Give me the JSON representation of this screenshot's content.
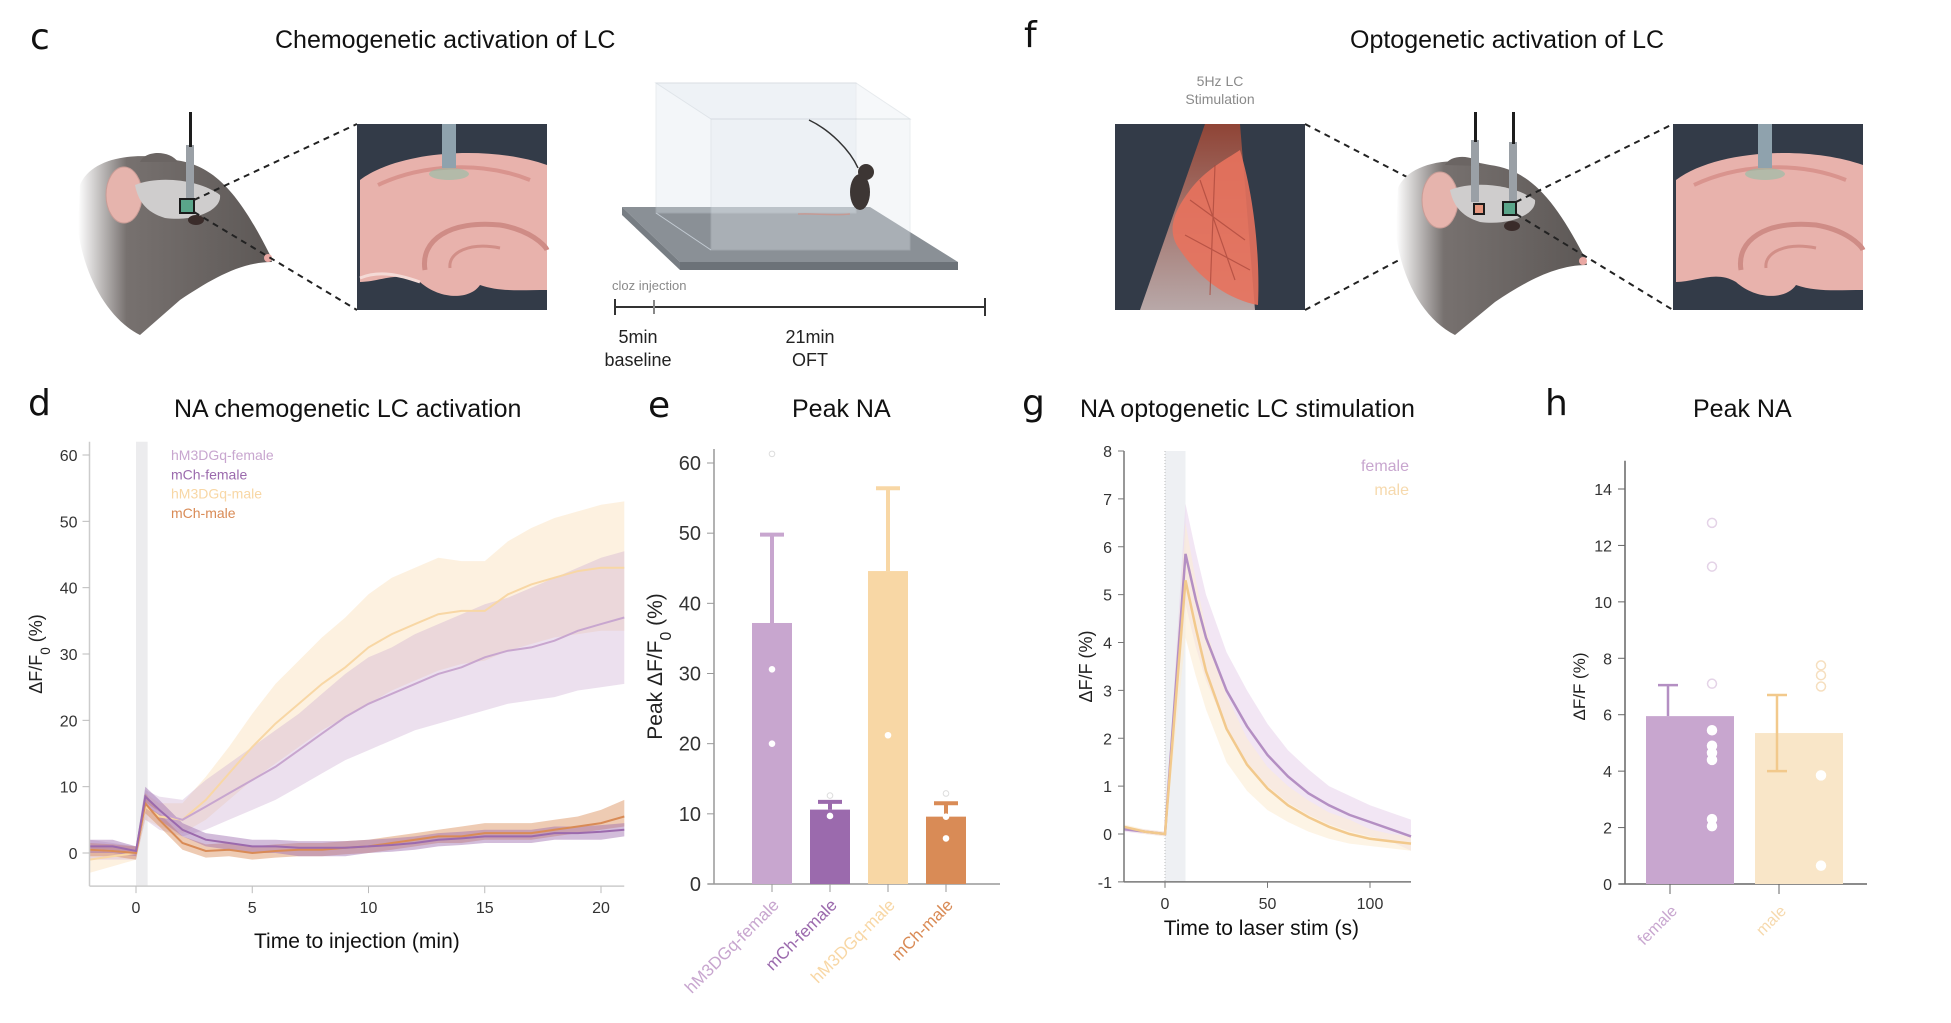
{
  "panels": {
    "c": {
      "letter": "c",
      "title": "Chemogenetic activation of LC",
      "timeline": {
        "event_label": "cloz injection",
        "seg1_line1": "5min",
        "seg1_line2": "baseline",
        "seg2_line1": "21min",
        "seg2_line2": "OFT"
      }
    },
    "f": {
      "letter": "f",
      "title": "Optogenetic activation of LC",
      "stim_line1": "5Hz LC",
      "stim_line2": "Stimulation"
    },
    "d": {
      "letter": "d",
      "title": "NA chemogenetic LC activation"
    },
    "e": {
      "letter": "e",
      "title": "Peak NA"
    },
    "g": {
      "letter": "g",
      "title": "NA optogenetic LC stimulation"
    },
    "h": {
      "letter": "h",
      "title": "Peak NA"
    }
  },
  "colors": {
    "hM3DGq-female": "#c8a6cf",
    "mCh-female": "#9b6aad",
    "hM3DGq-male": "#f8d7a5",
    "mCh-male": "#d98b56",
    "female": "#c8a6cf",
    "male": "#f9e6c8",
    "axis": "#7a7a7a",
    "stim_band": "#ececee"
  },
  "chart_data": [
    {
      "id": "d",
      "type": "line",
      "title": "NA chemogenetic LC activation",
      "xlabel": "Time to injection (min)",
      "ylabel": "ΔF/F0 (%)",
      "ylabel_main": "ΔF/F",
      "ylabel_sub": "0",
      "ylabel_tail": " (%)",
      "xlim": [
        -2,
        21
      ],
      "ylim": [
        -5,
        62
      ],
      "xticks": [
        0,
        5,
        10,
        15,
        20
      ],
      "yticks": [
        0,
        10,
        20,
        30,
        40,
        50,
        60
      ],
      "shaded_interval": [
        0,
        0.5
      ],
      "legend_position": "top-left",
      "legend": [
        "hM3DGq-female",
        "mCh-female",
        "hM3DGq-male",
        "mCh-male"
      ],
      "series": [
        {
          "name": "hM3DGq-female",
          "x": [
            -2,
            -1,
            0,
            0.4,
            1,
            2,
            3,
            4,
            5,
            6,
            7,
            8,
            9,
            10,
            11,
            12,
            13,
            14,
            15,
            16,
            17,
            18,
            19,
            20,
            21
          ],
          "y": [
            0.5,
            0.3,
            0,
            7.5,
            6,
            5,
            7,
            9,
            11,
            13,
            15.5,
            18,
            20.5,
            22.5,
            24,
            25.5,
            27,
            28,
            29.5,
            30.5,
            31,
            32,
            33.5,
            34.5,
            35.5
          ],
          "lo": [
            -1,
            -1,
            -1,
            5,
            3.5,
            2.5,
            3.5,
            5,
            6.5,
            8,
            10,
            12,
            14,
            15.5,
            17,
            18.5,
            19.5,
            20.5,
            21.5,
            22.5,
            23,
            23.5,
            24.5,
            25,
            25.5
          ],
          "hi": [
            2,
            1.5,
            1,
            9.5,
            8.5,
            8,
            11,
            13.5,
            16,
            18.5,
            21,
            24,
            27,
            29.5,
            31,
            33,
            34.5,
            36,
            37.5,
            38.5,
            40,
            41.5,
            43,
            44.5,
            45.5
          ]
        },
        {
          "name": "mCh-female",
          "x": [
            -2,
            -1,
            0,
            0.4,
            1,
            2,
            3,
            4,
            5,
            6,
            7,
            8,
            9,
            10,
            11,
            12,
            13,
            14,
            15,
            16,
            17,
            18,
            19,
            20,
            21
          ],
          "y": [
            1,
            1,
            0.3,
            8.5,
            6.5,
            3.5,
            2,
            1.5,
            1,
            1,
            0.8,
            0.8,
            0.8,
            1,
            1.2,
            1.5,
            2,
            2.2,
            2.5,
            2.5,
            2.5,
            3,
            3,
            3.2,
            3.5
          ],
          "lo": [
            0,
            0,
            -0.5,
            7,
            5,
            2.5,
            1,
            0.5,
            0,
            0,
            -0.5,
            -0.5,
            -0.5,
            0,
            0.2,
            0.5,
            1,
            1.2,
            1.5,
            1.5,
            1.5,
            2,
            2,
            2,
            2.5
          ],
          "hi": [
            2,
            2,
            1,
            10,
            8,
            4.5,
            3,
            2.5,
            2,
            2,
            1.8,
            1.8,
            1.8,
            2,
            2.2,
            2.5,
            3,
            3.2,
            3.5,
            3.5,
            3.5,
            4,
            4,
            4.2,
            4.5
          ]
        },
        {
          "name": "hM3DGq-male",
          "x": [
            -2,
            -1,
            0,
            0.4,
            1,
            2,
            3,
            4,
            5,
            6,
            7,
            8,
            9,
            10,
            11,
            12,
            13,
            14,
            15,
            16,
            17,
            18,
            19,
            20,
            21
          ],
          "y": [
            -1,
            -0.5,
            0,
            7,
            5.5,
            5,
            8,
            12,
            16,
            19.5,
            22.5,
            25.5,
            28,
            31,
            33,
            34.5,
            36,
            36.5,
            36.5,
            39,
            40.5,
            41.5,
            42.5,
            43,
            43
          ],
          "lo": [
            -3,
            -2,
            -1,
            5,
            4,
            3,
            5,
            8,
            11,
            13.5,
            16,
            18.5,
            20.5,
            22.5,
            24.5,
            26,
            27.5,
            28.5,
            29,
            30.5,
            31.5,
            32.5,
            33,
            33.5,
            33.5
          ],
          "hi": [
            1,
            1,
            1,
            9,
            7.5,
            7.5,
            11.5,
            16,
            21,
            25.5,
            29,
            32.5,
            35.5,
            39,
            41.5,
            43,
            44.5,
            44,
            44,
            47,
            49,
            50.5,
            51.5,
            52.5,
            53
          ]
        },
        {
          "name": "mCh-male",
          "x": [
            -2,
            -1,
            0,
            0.4,
            1,
            2,
            3,
            4,
            5,
            6,
            7,
            8,
            9,
            10,
            11,
            12,
            13,
            14,
            15,
            16,
            17,
            18,
            19,
            20,
            21
          ],
          "y": [
            0.5,
            0.3,
            0,
            7.5,
            5,
            1.5,
            0.3,
            0.5,
            0,
            0.3,
            0.5,
            0.5,
            0.8,
            1,
            1.5,
            2,
            2.5,
            2.5,
            3,
            3,
            3,
            3.5,
            4,
            4.5,
            5.5
          ],
          "lo": [
            -0.5,
            -0.5,
            -1,
            6,
            4,
            0.5,
            -0.7,
            -0.5,
            -1,
            -0.7,
            -0.5,
            -0.5,
            -0.2,
            0,
            0.5,
            1,
            1.5,
            1.5,
            2,
            2,
            2,
            2.5,
            3,
            3.5,
            4
          ],
          "hi": [
            1.5,
            1.3,
            1,
            9,
            6,
            2.5,
            1.3,
            1.5,
            1,
            1.3,
            1.5,
            1.5,
            1.8,
            2,
            2.5,
            3,
            3.5,
            4,
            4.5,
            4.5,
            4.5,
            5,
            5.5,
            6.5,
            8
          ]
        }
      ]
    },
    {
      "id": "e",
      "type": "bar",
      "title": "Peak NA",
      "xlabel": "",
      "ylabel_main": "Peak ΔF/F",
      "ylabel_sub": "0",
      "ylabel_tail": " (%)",
      "ylim": [
        0,
        62
      ],
      "yticks": [
        0,
        10,
        20,
        30,
        40,
        50,
        60
      ],
      "categories": [
        "hM3DGq-female",
        "mCh-female",
        "hM3DGq-male",
        "mCh-male"
      ],
      "values": [
        37.2,
        10.6,
        44.6,
        9.6
      ],
      "error_upper": [
        49.8,
        11.7,
        56.4,
        11.5
      ],
      "points": [
        [
          30.6,
          20.0,
          61.3
        ],
        [
          9.7,
          12.6
        ],
        [
          21.2
        ],
        [
          9.6,
          6.5,
          12.9
        ]
      ],
      "points_open": [
        [
          false,
          false,
          true
        ],
        [
          false,
          true
        ],
        [
          false
        ],
        [
          false,
          false,
          true
        ]
      ]
    },
    {
      "id": "g",
      "type": "line",
      "title": "NA optogenetic LC stimulation",
      "xlabel": "Time to laser stim (s)",
      "ylabel": "ΔF/F (%)",
      "xlim": [
        -20,
        120
      ],
      "ylim": [
        -1,
        8
      ],
      "xticks": [
        0,
        50,
        100
      ],
      "yticks": [
        -1,
        0,
        1,
        2,
        3,
        4,
        5,
        6,
        7,
        8
      ],
      "shaded_interval": [
        0,
        10
      ],
      "legend_position": "top-right",
      "legend": [
        "female",
        "male"
      ],
      "series": [
        {
          "name": "female",
          "x": [
            -20,
            -10,
            0,
            10,
            15,
            20,
            30,
            40,
            50,
            60,
            70,
            80,
            90,
            100,
            110,
            120
          ],
          "y": [
            0.1,
            0.05,
            0,
            5.85,
            4.9,
            4.1,
            3.0,
            2.25,
            1.65,
            1.2,
            0.85,
            0.6,
            0.4,
            0.25,
            0.1,
            -0.05
          ],
          "lo": [
            0.05,
            0,
            -0.05,
            4.8,
            3.9,
            3.2,
            2.2,
            1.5,
            1.0,
            0.65,
            0.4,
            0.2,
            0.05,
            -0.05,
            -0.15,
            -0.35
          ],
          "hi": [
            0.15,
            0.1,
            0.05,
            6.9,
            5.9,
            5.0,
            3.8,
            3.0,
            2.3,
            1.75,
            1.35,
            1.0,
            0.8,
            0.6,
            0.45,
            0.3
          ]
        },
        {
          "name": "male",
          "x": [
            -20,
            -10,
            0,
            10,
            15,
            20,
            30,
            40,
            50,
            60,
            70,
            80,
            90,
            100,
            110,
            120
          ],
          "y": [
            0.15,
            0.05,
            0,
            5.3,
            4.3,
            3.4,
            2.2,
            1.45,
            0.95,
            0.6,
            0.35,
            0.15,
            0.0,
            -0.1,
            -0.15,
            -0.2
          ],
          "lo": [
            0.1,
            0.0,
            -0.05,
            4.1,
            3.3,
            2.6,
            1.5,
            0.9,
            0.5,
            0.25,
            0.05,
            -0.1,
            -0.2,
            -0.25,
            -0.3,
            -0.35
          ],
          "hi": [
            0.2,
            0.1,
            0.05,
            6.5,
            5.3,
            4.3,
            2.9,
            2.0,
            1.4,
            1.0,
            0.7,
            0.45,
            0.3,
            0.1,
            0.0,
            -0.05
          ]
        }
      ]
    },
    {
      "id": "h",
      "type": "bar",
      "title": "Peak NA",
      "ylabel": "ΔF/F (%)",
      "ylim": [
        0,
        15
      ],
      "yticks": [
        0,
        2,
        4,
        6,
        8,
        10,
        12,
        14
      ],
      "categories": [
        "female",
        "male"
      ],
      "values": [
        5.95,
        5.35
      ],
      "error_upper": [
        7.05,
        6.7
      ],
      "error_lower": [
        null,
        4.0
      ],
      "points": [
        [
          12.8,
          11.25,
          7.1,
          5.45,
          4.9,
          4.65,
          4.4,
          2.3,
          2.05
        ],
        [
          7.75,
          7.4,
          7.0,
          3.85,
          0.65
        ]
      ],
      "points_open": [
        [
          true,
          true,
          true,
          false,
          false,
          false,
          false,
          false,
          false
        ],
        [
          true,
          true,
          true,
          false,
          false
        ]
      ]
    }
  ]
}
